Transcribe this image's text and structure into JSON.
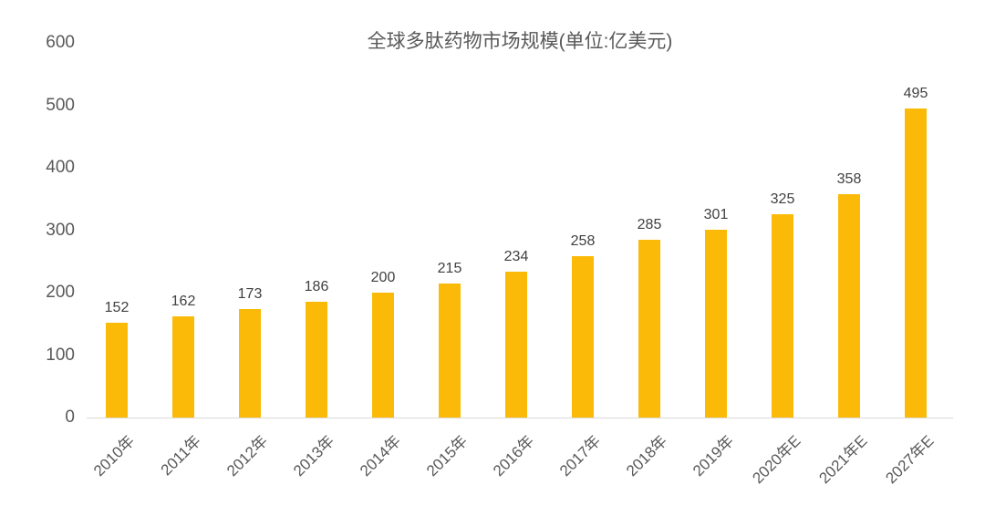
{
  "chart_data": {
    "type": "bar",
    "title": "全球多肽药物市场规模(单位:亿美元)",
    "categories": [
      "2010年",
      "2011年",
      "2012年",
      "2013年",
      "2014年",
      "2015年",
      "2016年",
      "2017年",
      "2018年",
      "2019年",
      "2020年E",
      "2021年E",
      "2027年E"
    ],
    "values": [
      152,
      162,
      173,
      186,
      200,
      215,
      234,
      258,
      285,
      301,
      325,
      358,
      495
    ],
    "xlabel": "",
    "ylabel": "",
    "ylim": [
      0,
      600
    ],
    "yticks": [
      0,
      100,
      200,
      300,
      400,
      500,
      600
    ],
    "grid": false,
    "legend_position": "none",
    "data_labels": true,
    "colors": {
      "bar": "#FBBA07",
      "value_label": "#404040",
      "axis_text": "#595959",
      "axis_line": "#D9D9D9",
      "title_text": "#595959"
    }
  }
}
